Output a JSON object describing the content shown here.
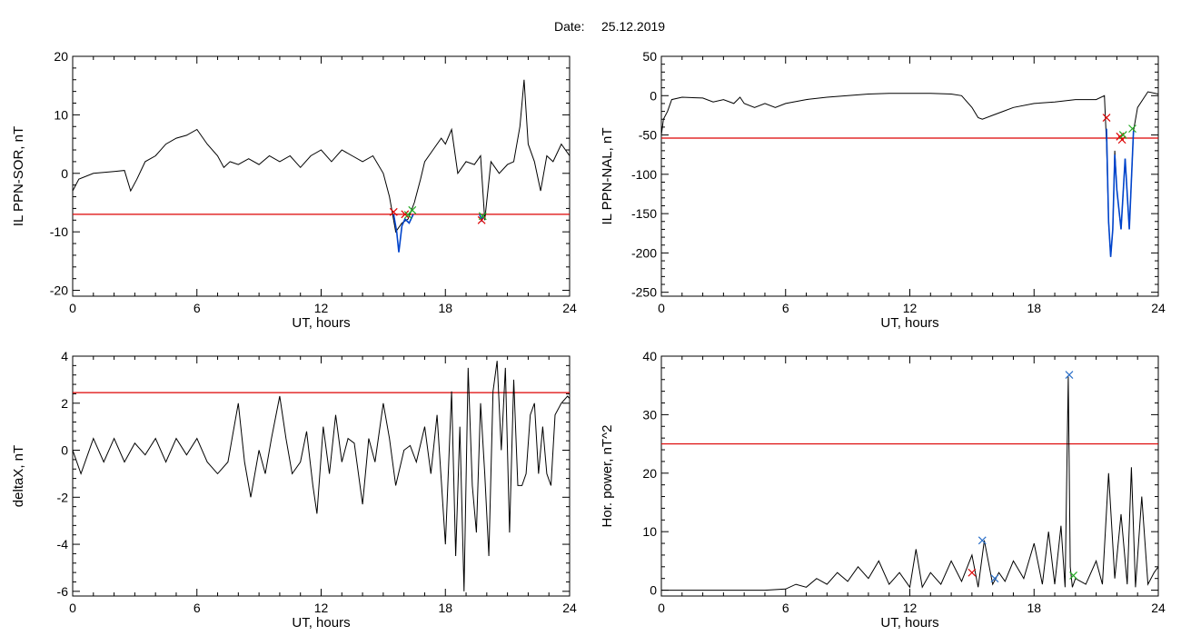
{
  "header": {
    "date_label": "Date:",
    "date_value": "25.12.2019"
  },
  "colors": {
    "trace": "#000000",
    "threshold": "#dd0000",
    "event": "#0044cc",
    "marker_red": "#dd0000",
    "marker_green": "#22aa22",
    "marker_blue": "#2a6fc9"
  },
  "chart_data": [
    {
      "id": "p1",
      "type": "line",
      "xlabel": "UT, hours",
      "ylabel": "IL PPN-SOR, nT",
      "xlim": [
        0,
        24
      ],
      "ylim": [
        -21,
        20
      ],
      "xticks": [
        0,
        6,
        12,
        18,
        24
      ],
      "yticks": [
        20,
        10,
        0,
        -10,
        -20
      ],
      "xtick_labels": [
        "0",
        "6",
        "12",
        "18",
        "24"
      ],
      "ytick_labels": [
        "20",
        "10",
        "0",
        "-10",
        "-20"
      ],
      "threshold": -7,
      "series": [
        {
          "x": [
            0.0,
            0.3,
            1.0,
            2.0,
            2.5,
            2.8,
            3.1,
            3.5,
            4.0,
            4.5,
            5.0,
            5.5,
            6.0,
            6.5,
            7.0,
            7.3,
            7.6,
            8.0,
            8.5,
            9.0,
            9.5,
            10.0,
            10.5,
            11.0,
            11.5,
            12.0,
            12.5,
            13.0,
            13.5,
            14.0,
            14.5,
            15.0,
            15.3,
            15.6,
            15.9,
            16.2,
            16.5,
            16.8,
            17.0,
            17.4,
            17.8,
            18.0,
            18.3,
            18.6,
            19.0,
            19.4,
            19.7,
            19.9,
            20.2,
            20.6,
            21.0,
            21.3,
            21.6,
            21.8,
            22.0,
            22.3,
            22.6,
            22.9,
            23.2,
            23.6,
            24.0
          ],
          "y": [
            -3,
            -1,
            0,
            0.3,
            0.5,
            -3,
            -1,
            2,
            3,
            5,
            6,
            6.5,
            7.5,
            5,
            3,
            1,
            2,
            1.5,
            2.5,
            1.5,
            3,
            2,
            3,
            1,
            3,
            4,
            2,
            4,
            3,
            2,
            3,
            0,
            -4,
            -10,
            -8.5,
            -7.8,
            -5,
            -1,
            2,
            4,
            6,
            5,
            7.5,
            0,
            2,
            1.5,
            3,
            -8,
            2,
            0,
            1.5,
            2,
            8,
            16,
            5,
            2,
            -3,
            3,
            2,
            5,
            3
          ]
        }
      ],
      "event_segments": [
        {
          "x": [
            15.5,
            15.65,
            15.75,
            15.9,
            16.05,
            16.25,
            16.45
          ],
          "y": [
            -7,
            -10,
            -13.5,
            -9,
            -7.8,
            -8.5,
            -7
          ]
        },
        {
          "x": [
            19.65,
            19.75,
            19.85
          ],
          "y": [
            -7,
            -8,
            -7
          ]
        }
      ],
      "markers": [
        {
          "x": 15.5,
          "y": -6.6,
          "color": "marker_red"
        },
        {
          "x": 16.05,
          "y": -7,
          "color": "marker_red"
        },
        {
          "x": 16.2,
          "y": -7.1,
          "color": "marker_green"
        },
        {
          "x": 16.4,
          "y": -6.3,
          "color": "marker_green"
        },
        {
          "x": 19.75,
          "y": -8,
          "color": "marker_red"
        },
        {
          "x": 19.8,
          "y": -7.3,
          "color": "marker_green"
        }
      ]
    },
    {
      "id": "p2",
      "type": "line",
      "xlabel": "UT, hours",
      "ylabel": "IL PPN-NAL, nT",
      "xlim": [
        0,
        24
      ],
      "ylim": [
        -255,
        50
      ],
      "xticks": [
        0,
        6,
        12,
        18,
        24
      ],
      "yticks": [
        50,
        0,
        -50,
        -100,
        -150,
        -200,
        -250
      ],
      "xtick_labels": [
        "0",
        "6",
        "12",
        "18",
        "24"
      ],
      "ytick_labels": [
        "50",
        "0",
        "-50",
        "-100",
        "-150",
        "-200",
        "-250"
      ],
      "threshold": -54,
      "series": [
        {
          "x": [
            0.0,
            0.1,
            0.3,
            0.5,
            1.0,
            2.0,
            2.5,
            3.0,
            3.5,
            3.8,
            4.0,
            4.5,
            5.0,
            5.5,
            6.0,
            7.0,
            8.0,
            9.0,
            10.0,
            11.0,
            12.0,
            13.0,
            14.0,
            14.5,
            15.0,
            15.3,
            15.5,
            16.0,
            16.5,
            17.0,
            18.0,
            19.0,
            20.0,
            21.0,
            21.4,
            21.5,
            21.6,
            21.7,
            21.8,
            21.9,
            22.0,
            22.2,
            22.4,
            22.6,
            22.8,
            23.0,
            23.5,
            24.0
          ],
          "y": [
            -50,
            -30,
            -20,
            -5,
            -2,
            -3,
            -8,
            -5,
            -10,
            -2,
            -10,
            -15,
            -10,
            -15,
            -10,
            -5,
            -2,
            0,
            2,
            3,
            3,
            3,
            2,
            0,
            -15,
            -28,
            -30,
            -25,
            -20,
            -15,
            -10,
            -8,
            -5,
            -5,
            0,
            -60,
            -160,
            -205,
            -170,
            -70,
            -120,
            -170,
            -80,
            -170,
            -45,
            -15,
            5,
            2
          ]
        }
      ],
      "event_segments": [
        {
          "x": [
            21.5,
            21.6,
            21.7,
            21.8,
            21.9,
            22.0,
            22.2,
            22.4,
            22.6,
            22.8
          ],
          "y": [
            -42,
            -160,
            -205,
            -170,
            -75,
            -120,
            -170,
            -80,
            -170,
            -45
          ]
        }
      ],
      "markers": [
        {
          "x": 21.5,
          "y": -28,
          "color": "marker_red"
        },
        {
          "x": 22.15,
          "y": -52,
          "color": "marker_red"
        },
        {
          "x": 22.25,
          "y": -56,
          "color": "marker_red"
        },
        {
          "x": 22.3,
          "y": -50,
          "color": "marker_green"
        },
        {
          "x": 22.75,
          "y": -42,
          "color": "marker_green"
        }
      ]
    },
    {
      "id": "p3",
      "type": "line",
      "xlabel": "UT, hours",
      "ylabel": "deltaX, nT",
      "xlim": [
        0,
        24
      ],
      "ylim": [
        -6.2,
        4
      ],
      "xticks": [
        0,
        6,
        12,
        18,
        24
      ],
      "yticks": [
        4,
        2,
        0,
        -2,
        -4,
        -6
      ],
      "xtick_labels": [
        "0",
        "6",
        "12",
        "18",
        "24"
      ],
      "ytick_labels": [
        "4",
        "2",
        "0",
        "-2",
        "-4",
        "-6"
      ],
      "threshold": 2.45,
      "series": [
        {
          "x": [
            0.0,
            0.4,
            1.0,
            1.5,
            2.0,
            2.5,
            3.0,
            3.5,
            4.0,
            4.5,
            5.0,
            5.5,
            6.0,
            6.5,
            7.0,
            7.5,
            8.0,
            8.3,
            8.6,
            9.0,
            9.3,
            9.6,
            10.0,
            10.3,
            10.6,
            11.0,
            11.3,
            11.6,
            11.8,
            12.1,
            12.4,
            12.7,
            13.0,
            13.3,
            13.6,
            14.0,
            14.3,
            14.6,
            15.0,
            15.3,
            15.6,
            16.0,
            16.3,
            16.6,
            17.0,
            17.3,
            17.6,
            18.0,
            18.3,
            18.5,
            18.7,
            18.9,
            19.1,
            19.3,
            19.5,
            19.7,
            19.9,
            20.1,
            20.3,
            20.5,
            20.7,
            20.9,
            21.1,
            21.3,
            21.5,
            21.7,
            21.9,
            22.1,
            22.3,
            22.5,
            22.7,
            22.9,
            23.1,
            23.3,
            23.6,
            23.9,
            24.0
          ],
          "y": [
            0,
            -1,
            0.5,
            -0.5,
            0.5,
            -0.5,
            0.3,
            -0.2,
            0.5,
            -0.5,
            0.5,
            -0.2,
            0.5,
            -0.5,
            -1,
            -0.5,
            2,
            -0.5,
            -2,
            0,
            -1,
            0.5,
            2.3,
            0.5,
            -1,
            -0.5,
            0.8,
            -1.5,
            -2.7,
            1,
            -1,
            1.5,
            -0.5,
            0.5,
            0.3,
            -2.3,
            0.5,
            -0.5,
            2,
            0.5,
            -1.5,
            0,
            0.2,
            -0.5,
            1,
            -1,
            1.5,
            -4,
            2.5,
            -4.5,
            1,
            -6,
            3.5,
            -1.5,
            -3.5,
            2,
            -1,
            -4.5,
            2.5,
            3.8,
            0,
            3.5,
            -3.5,
            3,
            -1.5,
            -1.5,
            -1,
            1.5,
            2,
            -1,
            1,
            -1,
            -1.5,
            1.5,
            2,
            2.3,
            2.2
          ]
        }
      ],
      "event_segments": [],
      "markers": []
    },
    {
      "id": "p4",
      "type": "line",
      "xlabel": "UT, hours",
      "ylabel": "Hor. power, nT^2",
      "xlim": [
        0,
        24
      ],
      "ylim": [
        -1,
        40
      ],
      "xticks": [
        0,
        6,
        12,
        18,
        24
      ],
      "yticks": [
        40,
        30,
        20,
        10,
        0
      ],
      "xtick_labels": [
        "0",
        "6",
        "12",
        "18",
        "24"
      ],
      "ytick_labels": [
        "40",
        "30",
        "20",
        "10",
        "0"
      ],
      "threshold": 25,
      "series": [
        {
          "x": [
            0.0,
            1.0,
            2.0,
            3.0,
            4.0,
            5.0,
            6.0,
            6.5,
            7.0,
            7.5,
            8.0,
            8.5,
            9.0,
            9.5,
            10.0,
            10.5,
            11.0,
            11.5,
            12.0,
            12.3,
            12.6,
            13.0,
            13.5,
            14.0,
            14.5,
            15.0,
            15.3,
            15.6,
            16.0,
            16.3,
            16.6,
            17.0,
            17.5,
            18.0,
            18.4,
            18.7,
            19.0,
            19.3,
            19.5,
            19.65,
            19.75,
            19.85,
            20.0,
            20.5,
            21.0,
            21.3,
            21.6,
            21.9,
            22.2,
            22.5,
            22.7,
            22.9,
            23.2,
            23.5,
            23.8,
            24.0
          ],
          "y": [
            0,
            0,
            0,
            0,
            0,
            0,
            0.2,
            1,
            0.5,
            2,
            1,
            3,
            1.5,
            4,
            2,
            5,
            1,
            3,
            0.5,
            7,
            0.5,
            3,
            1,
            5,
            1.5,
            6,
            0.5,
            8.5,
            1,
            3,
            1.5,
            5,
            2,
            8,
            1,
            10,
            1,
            11,
            0.5,
            36.5,
            4,
            0.5,
            2,
            1,
            5,
            1,
            20,
            2,
            13,
            1,
            21,
            0.5,
            16,
            1,
            3,
            4
          ]
        }
      ],
      "event_segments": [],
      "markers": [
        {
          "x": 15.0,
          "y": 3,
          "color": "marker_red"
        },
        {
          "x": 15.5,
          "y": 8.5,
          "color": "marker_blue"
        },
        {
          "x": 16.1,
          "y": 2,
          "color": "marker_blue"
        },
        {
          "x": 19.7,
          "y": 36.8,
          "color": "marker_blue"
        },
        {
          "x": 19.9,
          "y": 2.5,
          "color": "marker_green"
        }
      ]
    }
  ]
}
